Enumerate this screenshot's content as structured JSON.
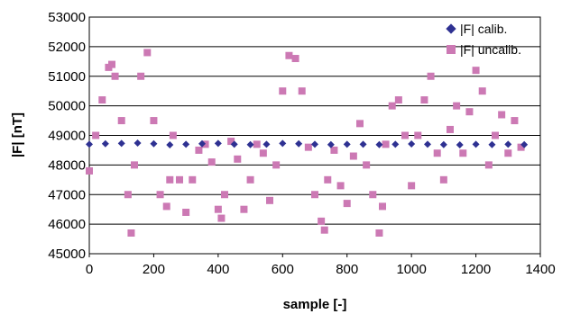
{
  "chart_data": {
    "type": "scatter",
    "xlabel": "sample [-]",
    "ylabel": "|F| [nT]",
    "xlim": [
      0,
      1400
    ],
    "ylim": [
      45000,
      53000
    ],
    "x_ticks": [
      "0",
      "200",
      "400",
      "600",
      "800",
      "1000",
      "1200",
      "1400"
    ],
    "y_ticks": [
      "45000",
      "46000",
      "47000",
      "48000",
      "49000",
      "50000",
      "51000",
      "52000",
      "53000"
    ],
    "grid": "horizontal",
    "legend_position": "top-right",
    "series": [
      {
        "name": "|F| calib.",
        "color": "#2e3192",
        "marker": "diamond",
        "x": [
          0,
          50,
          100,
          150,
          200,
          250,
          300,
          350,
          400,
          450,
          500,
          550,
          600,
          650,
          700,
          750,
          800,
          850,
          900,
          950,
          1000,
          1050,
          1100,
          1150,
          1200,
          1250,
          1300,
          1350
        ],
        "y": [
          48700,
          48720,
          48730,
          48740,
          48720,
          48680,
          48700,
          48720,
          48730,
          48700,
          48690,
          48700,
          48730,
          48720,
          48700,
          48690,
          48700,
          48700,
          48690,
          48700,
          48710,
          48700,
          48690,
          48680,
          48700,
          48690,
          48700,
          48690
        ]
      },
      {
        "name": "|F| uncalib.",
        "color": "#cc79b4",
        "marker": "square",
        "x": [
          0,
          20,
          40,
          60,
          70,
          80,
          100,
          120,
          130,
          140,
          160,
          180,
          200,
          220,
          240,
          250,
          260,
          280,
          300,
          320,
          340,
          360,
          380,
          400,
          410,
          420,
          440,
          460,
          480,
          500,
          520,
          540,
          560,
          580,
          600,
          620,
          640,
          660,
          680,
          700,
          720,
          730,
          740,
          760,
          780,
          800,
          820,
          840,
          860,
          880,
          900,
          910,
          920,
          940,
          960,
          980,
          1000,
          1020,
          1040,
          1060,
          1080,
          1100,
          1120,
          1140,
          1160,
          1180,
          1200,
          1220,
          1240,
          1260,
          1280,
          1300,
          1320,
          1340
        ],
        "y": [
          47800,
          49000,
          50200,
          51300,
          51400,
          51000,
          49500,
          47000,
          45700,
          48000,
          51000,
          51800,
          49500,
          47000,
          46600,
          47500,
          49000,
          47500,
          46400,
          47500,
          48500,
          48700,
          48100,
          46500,
          46200,
          47000,
          48800,
          48200,
          46500,
          47500,
          48700,
          48400,
          46800,
          48000,
          50500,
          51700,
          51600,
          50500,
          48600,
          47000,
          46100,
          45800,
          47500,
          48500,
          47300,
          46700,
          48300,
          49400,
          48000,
          47000,
          45700,
          46600,
          48700,
          50000,
          50200,
          49000,
          47300,
          49000,
          50200,
          51000,
          48400,
          47500,
          49200,
          50000,
          48400,
          49800,
          51200,
          50500,
          48000,
          49000,
          49700,
          48400,
          49500,
          48600
        ]
      }
    ]
  }
}
